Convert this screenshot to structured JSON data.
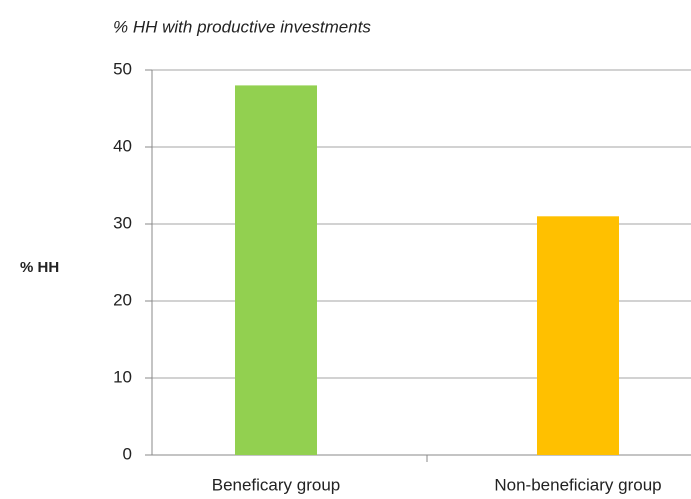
{
  "chart_data": {
    "type": "bar",
    "title": "% HH with productive investments",
    "y_label": "% HH",
    "categories": [
      "Beneficary group",
      "Non-beneficiary group"
    ],
    "values": [
      48,
      31
    ],
    "colors": [
      "#92d050",
      "#ffc000"
    ],
    "ylim": [
      0,
      50
    ],
    "yticks": [
      0,
      10,
      20,
      30,
      40,
      50
    ],
    "grid": true
  }
}
